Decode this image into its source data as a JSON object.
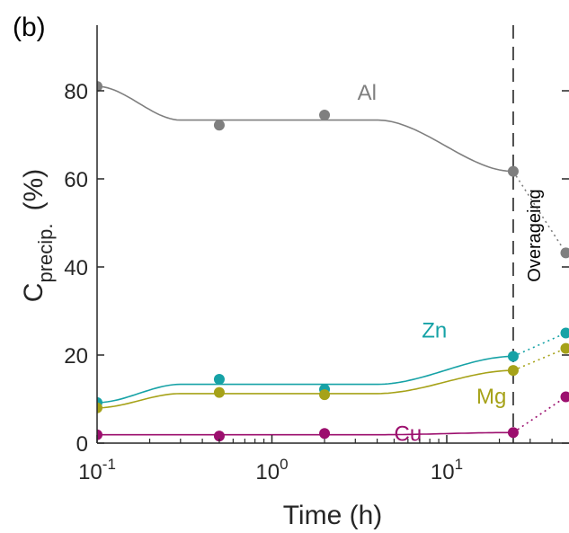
{
  "panel_label": "(b)",
  "chart_data": {
    "type": "scatter",
    "xlabel": "Time (h)",
    "ylabel": {
      "main": "C",
      "sub": "precip.",
      "unit": "(%)"
    },
    "xscale": "log",
    "xlim": [
      0.1,
      48
    ],
    "ylim": [
      0,
      95
    ],
    "x_ticks": [
      {
        "value": 0.1,
        "base": "10",
        "exp": "-1"
      },
      {
        "value": 1,
        "base": "10",
        "exp": "0"
      },
      {
        "value": 10,
        "base": "10",
        "exp": "1"
      }
    ],
    "y_ticks": [
      0,
      20,
      40,
      60,
      80
    ],
    "series": [
      {
        "name": "Al",
        "color": "#7f7f7f",
        "label_at": [
          3.5,
          78
        ],
        "x": [
          0.1,
          0.5,
          2,
          24,
          48
        ],
        "values": [
          81,
          72.2,
          74.5,
          61.7,
          43.2
        ]
      },
      {
        "name": "Zn",
        "color": "#16a2a6",
        "label_at": [
          8.5,
          24
        ],
        "x": [
          0.1,
          0.5,
          2,
          24,
          48
        ],
        "values": [
          9.2,
          14.5,
          12.2,
          19.7,
          25
        ]
      },
      {
        "name": "Mg",
        "color": "#a6a218",
        "label_at": [
          18,
          9
        ],
        "x": [
          0.1,
          0.5,
          2,
          24,
          48
        ],
        "values": [
          8,
          11.5,
          11,
          16.5,
          21.5
        ]
      },
      {
        "name": "Cu",
        "color": "#9c0f6e",
        "label_at": [
          6,
          0.5
        ],
        "x": [
          0.1,
          0.5,
          2,
          24,
          48
        ],
        "values": [
          1.9,
          1.6,
          2.2,
          2.4,
          10.5
        ]
      }
    ],
    "vline": {
      "x": 24,
      "style": "dashed",
      "label": "Overageing"
    },
    "grid": false
  }
}
